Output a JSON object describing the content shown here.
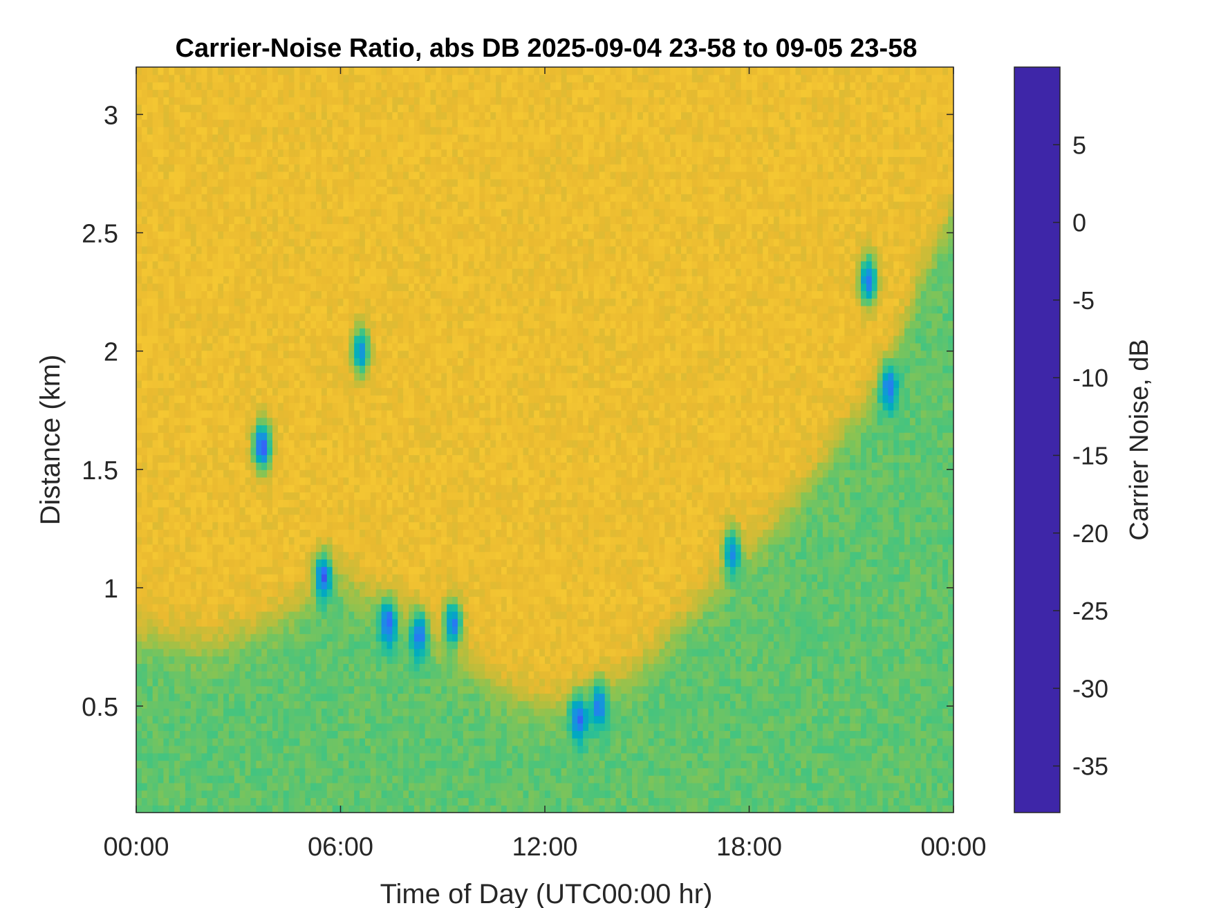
{
  "chart_data": {
    "type": "heatmap",
    "title": "Carrier-Noise Ratio, abs DB 2025-09-04 23-58 to 09-05 23-58",
    "xlabel": "Time of Day (UTC00:00 hr)",
    "ylabel": "Distance (km)",
    "colorbar_label": "Carrier Noise, dB",
    "x_unit": "hour",
    "xlim": [
      0,
      24
    ],
    "ylim": [
      0.05,
      3.2
    ],
    "clim": [
      -38,
      10
    ],
    "x_ticks": [
      0,
      6,
      12,
      18,
      24
    ],
    "x_tick_labels": [
      "00:00",
      "06:00",
      "12:00",
      "18:00",
      "00:00"
    ],
    "y_ticks": [
      0.5,
      1,
      1.5,
      2,
      2.5,
      3
    ],
    "y_tick_labels": [
      "0.5",
      "1",
      "1.5",
      "2",
      "2.5",
      "3"
    ],
    "colorbar_ticks": [
      5,
      0,
      -5,
      -10,
      -15,
      -20,
      -25,
      -30,
      -35
    ],
    "colorbar_tick_labels": [
      "5",
      "0",
      "-5",
      "-10",
      "-15",
      "-20",
      "-25",
      "-30",
      "-35"
    ],
    "colormap": "parula",
    "colormap_stops": [
      "#3e26a8",
      "#4144e8",
      "#2f6ffa",
      "#1792e0",
      "#00aac0",
      "#17bba6",
      "#45c47f",
      "#86c454",
      "#bdbd3b",
      "#eaba30",
      "#fbcf34",
      "#f9fb0e"
    ],
    "background_level_db": -30,
    "boundary_layer_top_km": [
      [
        0,
        0.8
      ],
      [
        1,
        0.78
      ],
      [
        2,
        0.75
      ],
      [
        3,
        0.8
      ],
      [
        4,
        0.85
      ],
      [
        5,
        0.95
      ],
      [
        6,
        1.05
      ],
      [
        7,
        0.95
      ],
      [
        8,
        0.85
      ],
      [
        9,
        0.75
      ],
      [
        10,
        0.65
      ],
      [
        11,
        0.55
      ],
      [
        12,
        0.5
      ],
      [
        13,
        0.52
      ],
      [
        14,
        0.58
      ],
      [
        15,
        0.7
      ],
      [
        16,
        0.85
      ],
      [
        17,
        1.0
      ],
      [
        18,
        1.15
      ],
      [
        19,
        1.3
      ],
      [
        20,
        1.5
      ],
      [
        21,
        1.7
      ],
      [
        22,
        1.9
      ],
      [
        23,
        2.3
      ],
      [
        24,
        2.6
      ]
    ],
    "boundary_layer_level_db": -18,
    "strong_echo_features": [
      {
        "t": 5.5,
        "d": 1.05,
        "db": 3
      },
      {
        "t": 7.4,
        "d": 0.85,
        "db": 3
      },
      {
        "t": 8.3,
        "d": 0.8,
        "db": 2
      },
      {
        "t": 9.3,
        "d": 0.85,
        "db": 0
      },
      {
        "t": 13.0,
        "d": 0.45,
        "db": 2
      },
      {
        "t": 13.6,
        "d": 0.5,
        "db": 0
      },
      {
        "t": 17.5,
        "d": 1.15,
        "db": -2
      },
      {
        "t": 21.5,
        "d": 2.3,
        "db": 2
      },
      {
        "t": 22.1,
        "d": 1.85,
        "db": 0
      },
      {
        "t": 3.7,
        "d": 1.6,
        "db": 5
      },
      {
        "t": 6.6,
        "d": 2.0,
        "db": -3
      }
    ]
  }
}
